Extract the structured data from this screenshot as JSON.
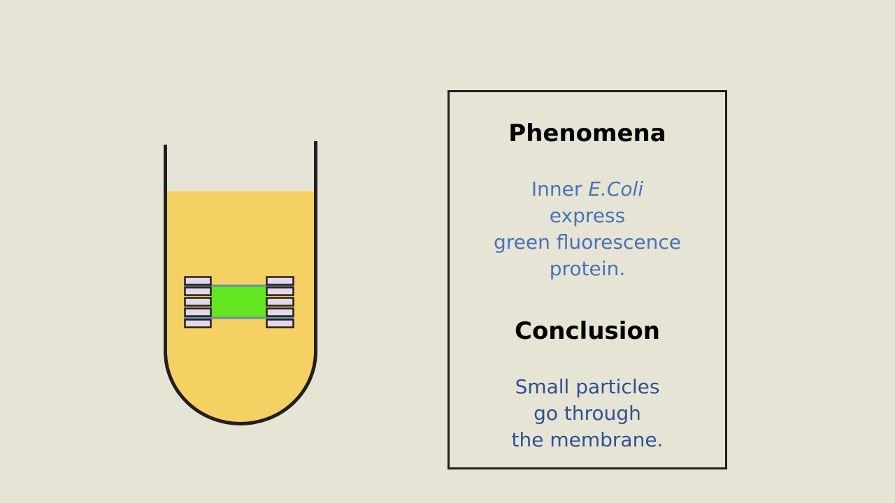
{
  "colors": {
    "background": "#e6e4d4",
    "medium": "#f5d062",
    "tube_outline": "#231f20",
    "membrane_green": "#63e620",
    "membrane_clip": "#e3d8e8",
    "membrane_edge": "#6a8fa6",
    "phenomena_text": "#4a72b8",
    "conclusion_text": "#2f5192",
    "heading_text": "#000000"
  },
  "phenomena": {
    "heading": "Phenomena",
    "line1_prefix": "Inner ",
    "line1_italic": "E.Coli",
    "line2": "express",
    "line3": "green fluorescence",
    "line4": "protein."
  },
  "conclusion": {
    "heading": "Conclusion",
    "line1": "Small particles",
    "line2": "go through",
    "line3": "the membrane."
  }
}
